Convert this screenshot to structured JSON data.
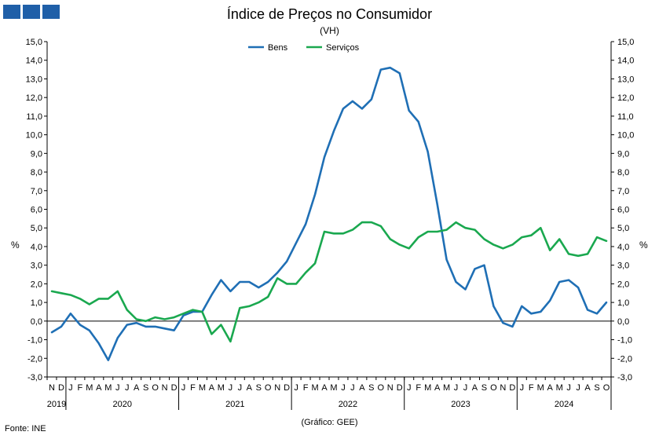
{
  "header": {
    "title": "Índice de Preços no Consumidor",
    "subtitle": "(VH)"
  },
  "footer": {
    "source": "Fonte: INE",
    "credit": "(Gráfico: GEE)"
  },
  "colors": {
    "logo": "#1f5fa8",
    "bens": "#1f6fb5",
    "servicos": "#1aa84f"
  },
  "chart_data": {
    "type": "line",
    "title": "Índice de Preços no Consumidor",
    "subtitle": "(VH)",
    "ylabel": "%",
    "y2label": "%",
    "ylim": [
      -3,
      15
    ],
    "yticks": [
      "15,0",
      "14,0",
      "13,0",
      "12,0",
      "11,0",
      "10,0",
      "9,0",
      "8,0",
      "7,0",
      "6,0",
      "5,0",
      "4,0",
      "3,0",
      "2,0",
      "1,0",
      "0,0",
      "-1,0",
      "-2,0",
      "-3,0"
    ],
    "grid": false,
    "legend_position": "top-center",
    "x": [
      "N",
      "D",
      "J",
      "F",
      "M",
      "A",
      "M",
      "J",
      "J",
      "A",
      "S",
      "O",
      "N",
      "D",
      "J",
      "F",
      "M",
      "A",
      "M",
      "J",
      "J",
      "A",
      "S",
      "O",
      "N",
      "D",
      "J",
      "F",
      "M",
      "A",
      "M",
      "J",
      "J",
      "A",
      "S",
      "O",
      "N",
      "D",
      "J",
      "F",
      "M",
      "A",
      "M",
      "J",
      "J",
      "A",
      "S",
      "O",
      "N",
      "D",
      "J",
      "F",
      "M",
      "A",
      "M",
      "J",
      "J",
      "A",
      "S",
      "O"
    ],
    "years": [
      {
        "label": "2019",
        "start": 0,
        "end": 1
      },
      {
        "label": "2020",
        "start": 2,
        "end": 13
      },
      {
        "label": "2021",
        "start": 14,
        "end": 25
      },
      {
        "label": "2022",
        "start": 26,
        "end": 37
      },
      {
        "label": "2023",
        "start": 38,
        "end": 49
      },
      {
        "label": "2024",
        "start": 50,
        "end": 59
      }
    ],
    "series": [
      {
        "name": "Bens",
        "color": "#1f6fb5",
        "values": [
          -0.6,
          -0.3,
          0.4,
          -0.2,
          -0.5,
          -1.2,
          -2.1,
          -0.9,
          -0.2,
          -0.1,
          -0.3,
          -0.3,
          -0.4,
          -0.5,
          0.3,
          0.5,
          0.5,
          1.4,
          2.2,
          1.6,
          2.1,
          2.1,
          1.8,
          2.1,
          2.6,
          3.2,
          4.2,
          5.2,
          6.8,
          8.8,
          10.2,
          11.4,
          11.8,
          11.4,
          11.9,
          13.5,
          13.6,
          13.3,
          11.3,
          10.7,
          9.1,
          6.3,
          3.3,
          2.1,
          1.7,
          2.8,
          3.0,
          0.8,
          -0.1,
          -0.3,
          0.8,
          0.4,
          0.5,
          1.1,
          2.1,
          2.2,
          1.8,
          0.6,
          0.4,
          1.0
        ]
      },
      {
        "name": "Serviços",
        "color": "#1aa84f",
        "values": [
          1.6,
          1.5,
          1.4,
          1.2,
          0.9,
          1.2,
          1.2,
          1.6,
          0.6,
          0.1,
          0.0,
          0.2,
          0.1,
          0.2,
          0.4,
          0.6,
          0.5,
          -0.7,
          -0.2,
          -1.1,
          0.7,
          0.8,
          1.0,
          1.3,
          2.3,
          2.0,
          2.0,
          2.6,
          3.1,
          4.8,
          4.7,
          4.7,
          4.9,
          5.3,
          5.3,
          5.1,
          4.4,
          4.1,
          3.9,
          4.5,
          4.8,
          4.8,
          4.9,
          5.3,
          5.0,
          4.9,
          4.4,
          4.1,
          3.9,
          4.1,
          4.5,
          4.6,
          5.0,
          3.8,
          4.4,
          3.6,
          3.5,
          3.6,
          4.5,
          4.3
        ]
      }
    ]
  }
}
